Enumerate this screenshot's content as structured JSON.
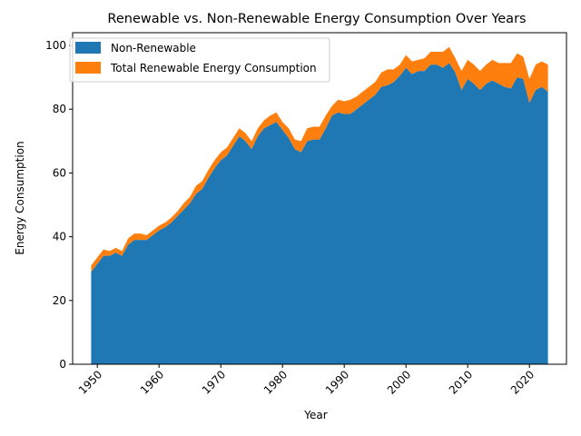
{
  "chart_data": {
    "type": "area",
    "stacked": true,
    "title": "Renewable vs. Non-Renewable Energy Consumption Over Years",
    "xlabel": "Year",
    "ylabel": "Energy Consumption",
    "xlim": [
      1946,
      2026
    ],
    "ylim": [
      0,
      104
    ],
    "xticks": [
      1950,
      1960,
      1970,
      1980,
      1990,
      2000,
      2010,
      2020
    ],
    "yticks": [
      0,
      20,
      40,
      60,
      80,
      100
    ],
    "grid": false,
    "legend_position": "top-left",
    "x": [
      1949,
      1950,
      1951,
      1952,
      1953,
      1954,
      1955,
      1956,
      1957,
      1958,
      1959,
      1960,
      1961,
      1962,
      1963,
      1964,
      1965,
      1966,
      1967,
      1968,
      1969,
      1970,
      1971,
      1972,
      1973,
      1974,
      1975,
      1976,
      1977,
      1978,
      1979,
      1980,
      1981,
      1982,
      1983,
      1984,
      1985,
      1986,
      1987,
      1988,
      1989,
      1990,
      1991,
      1992,
      1993,
      1994,
      1995,
      1996,
      1997,
      1998,
      1999,
      2000,
      2001,
      2002,
      2003,
      2004,
      2005,
      2006,
      2007,
      2008,
      2009,
      2010,
      2011,
      2012,
      2013,
      2014,
      2015,
      2016,
      2017,
      2018,
      2019,
      2020,
      2021,
      2022,
      2023
    ],
    "series": [
      {
        "name": "Non-Renewable",
        "color": "#1f77b4",
        "values": [
          29,
          31.5,
          34,
          34,
          35,
          34,
          37.5,
          39,
          39,
          39,
          40.5,
          42,
          43,
          44.5,
          46.5,
          48.5,
          50.5,
          53.5,
          55,
          58.5,
          61.5,
          64,
          65.5,
          68.5,
          71.5,
          70,
          67.5,
          71.5,
          74,
          75,
          76,
          73.5,
          71,
          67.5,
          66.5,
          70,
          70.5,
          70.5,
          74,
          78,
          79,
          78.5,
          78.5,
          80,
          81.5,
          83,
          84.5,
          87,
          87.5,
          88.5,
          90.5,
          93,
          91,
          92,
          92,
          94,
          94,
          93,
          94.5,
          91.5,
          86,
          89.5,
          88,
          86,
          88,
          89,
          88,
          87,
          86.5,
          90,
          89.5,
          82,
          86,
          87,
          85.5
        ]
      },
      {
        "name": "Total Renewable Energy Consumption",
        "color": "#ff7f0e",
        "values": [
          2,
          2,
          2,
          1.5,
          1.5,
          1.5,
          2,
          2,
          2,
          1.5,
          1.5,
          1.5,
          1.5,
          1.5,
          1.5,
          2,
          2,
          2.5,
          2.5,
          2.5,
          2.5,
          2.5,
          2.5,
          2.5,
          2.5,
          2.5,
          2.5,
          2.5,
          2.5,
          3,
          3,
          2.5,
          3,
          3,
          3.5,
          4,
          4,
          4,
          4,
          3,
          4,
          4,
          4.5,
          4,
          4,
          4,
          4,
          4.5,
          5,
          4,
          3.5,
          4,
          4,
          3.5,
          4,
          4,
          4,
          5,
          5,
          4.5,
          6,
          6,
          6,
          6,
          6,
          6.5,
          6.5,
          7.5,
          8,
          7.5,
          7,
          7.5,
          8,
          8,
          8.5
        ]
      }
    ]
  }
}
